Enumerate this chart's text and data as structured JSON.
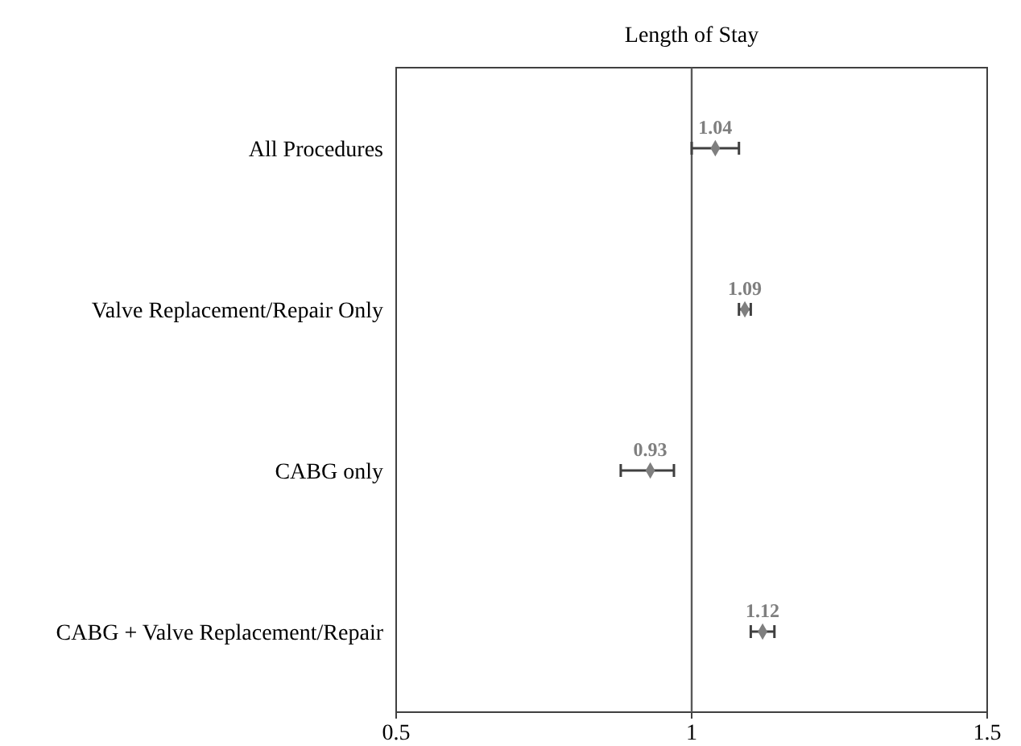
{
  "chart_data": {
    "type": "scatter",
    "orientation": "horizontal",
    "title": "Length of Stay",
    "categories": [
      "All Procedures",
      "Valve Replacement/Repair Only",
      "CABG only",
      "CABG + Valve Replacement/Repair"
    ],
    "values": [
      1.04,
      1.09,
      0.93,
      1.12
    ],
    "errors": [
      [
        1.0,
        1.08
      ],
      [
        1.08,
        1.1
      ],
      [
        0.88,
        0.97
      ],
      [
        1.1,
        1.14
      ]
    ],
    "color": "#7f7f7f",
    "marker": "diamond",
    "data_labels": true,
    "xlim": [
      0.5,
      1.5
    ],
    "xticks": [
      0.5,
      1,
      1.5
    ],
    "ref_lines": [
      {
        "axis": "x",
        "value": 1,
        "color": "#595959"
      }
    ],
    "grid": false
  }
}
